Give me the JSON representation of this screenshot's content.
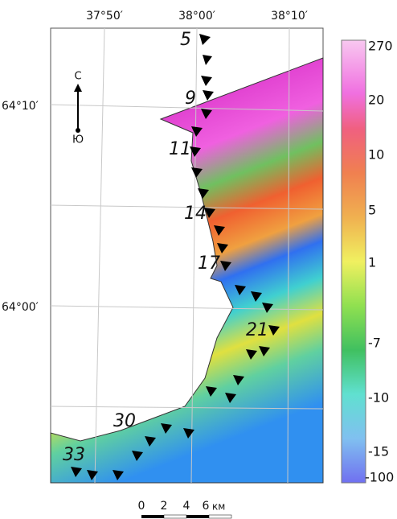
{
  "map": {
    "longitude_labels": [
      "37°50′",
      "38°00′",
      "38°10′"
    ],
    "latitude_labels": [
      "64°10′",
      "64°00′"
    ],
    "compass": {
      "north": "С",
      "south": "Ю"
    },
    "stations": [
      "5",
      "9",
      "11",
      "14",
      "17",
      "21",
      "30",
      "33"
    ]
  },
  "legend": {
    "labels": [
      "270",
      "20",
      "10",
      "5",
      "1",
      "-7",
      "-10",
      "-15",
      "-100"
    ]
  },
  "scale_bar": {
    "labels": [
      "0",
      "2",
      "4",
      "6"
    ],
    "unit": "км"
  }
}
